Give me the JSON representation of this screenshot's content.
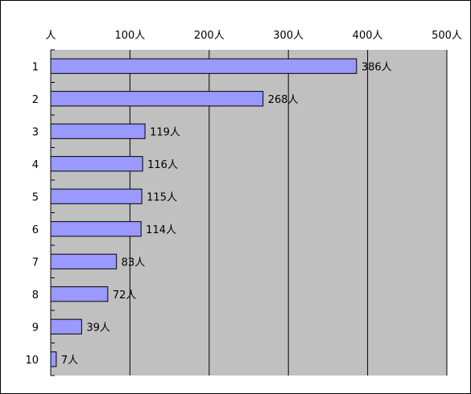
{
  "chart_data": {
    "type": "bar",
    "orientation": "horizontal",
    "categories": [
      "1",
      "2",
      "3",
      "4",
      "5",
      "6",
      "7",
      "8",
      "9",
      "10"
    ],
    "values": [
      386,
      268,
      119,
      116,
      115,
      114,
      83,
      72,
      39,
      7
    ],
    "value_labels": [
      "386人",
      "268人",
      "119人",
      "116人",
      "115人",
      "114人",
      "83人",
      "72人",
      "39人",
      "7人"
    ],
    "unit": "人",
    "xaxis": {
      "position": "top",
      "range": [
        0,
        500
      ],
      "ticks": [
        0,
        100,
        200,
        300,
        400,
        500
      ],
      "tick_labels": [
        "人",
        "100人",
        "200人",
        "300人",
        "400人",
        "500人"
      ]
    },
    "grid": true,
    "legend": "none",
    "colors": {
      "plot_background": "#c0c0c0",
      "bar_fill": "#9999ff",
      "bar_stroke": "#000000",
      "gridline": "#000000"
    }
  }
}
